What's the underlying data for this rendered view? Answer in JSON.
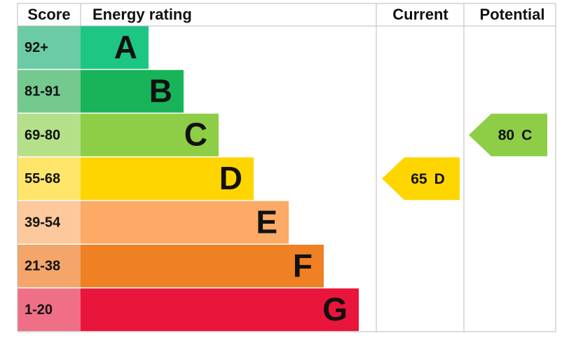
{
  "header": {
    "score": "Score",
    "rating": "Energy rating",
    "current": "Current",
    "potential": "Potential"
  },
  "bands": [
    {
      "score": "92+",
      "letter": "A",
      "color": "#1ec683",
      "score_color": "#6bcba5"
    },
    {
      "score": "81-91",
      "letter": "B",
      "color": "#19b459",
      "score_color": "#74c98f"
    },
    {
      "score": "69-80",
      "letter": "C",
      "color": "#8dce46",
      "score_color": "#b5e08a"
    },
    {
      "score": "55-68",
      "letter": "D",
      "color": "#ffd500",
      "score_color": "#ffe56a"
    },
    {
      "score": "39-54",
      "letter": "E",
      "color": "#fcaa65",
      "score_color": "#fdc89b"
    },
    {
      "score": "21-38",
      "letter": "F",
      "color": "#ef8023",
      "score_color": "#f3a56a"
    },
    {
      "score": "1-20",
      "letter": "G",
      "color": "#e9153b",
      "score_color": "#ef6f87"
    }
  ],
  "current": {
    "value": 65,
    "rating": "D"
  },
  "potential": {
    "value": 80,
    "rating": "C"
  }
}
